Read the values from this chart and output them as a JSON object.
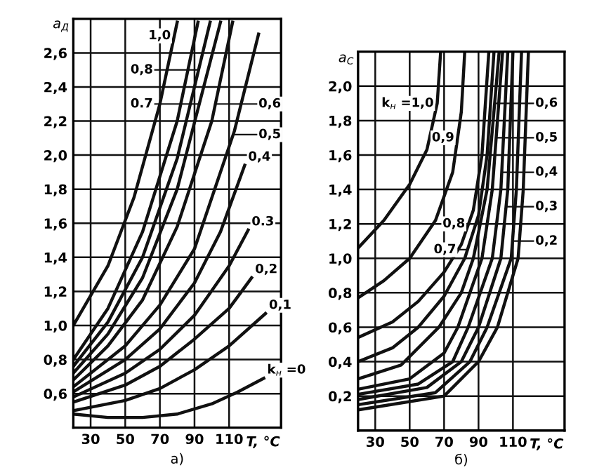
{
  "chart_data": [
    {
      "type": "line",
      "ylabel": "a$_{Д}$",
      "xlabel": "T, °C",
      "xlim": [
        20,
        140
      ],
      "xticks": [
        30,
        50,
        70,
        90,
        110
      ],
      "ylim": [
        0.4,
        2.8
      ],
      "yticks": [
        {
          "value": 0.6,
          "label": "0,6"
        },
        {
          "value": 0.8,
          "label": "0,8"
        },
        {
          "value": 1.0,
          "label": "1,0"
        },
        {
          "value": 1.2,
          "label": "1,2"
        },
        {
          "value": 1.4,
          "label": "1,4"
        },
        {
          "value": 1.6,
          "label": "1,6"
        },
        {
          "value": 1.8,
          "label": "1,8"
        },
        {
          "value": 2.0,
          "label": "2,0"
        },
        {
          "value": 2.2,
          "label": "2,2"
        },
        {
          "value": 2.4,
          "label": "2,4"
        },
        {
          "value": 2.6,
          "label": "2,6"
        }
      ],
      "grid": true,
      "line_style": "solid",
      "marker": "none",
      "annotations": [
        "а)",
        "0,8",
        "0.7",
        "0,6",
        {
          "text": "1,0",
          "x": 78.3,
          "y": 2.7
        },
        {
          "text": "0,5",
          "x": 112.3,
          "y": 2.12
        },
        {
          "text": "0,4",
          "x": 119,
          "y": 1.94
        },
        {
          "text": "0.3",
          "x": 121,
          "y": 1.56
        },
        {
          "text": "0,2",
          "x": 123,
          "y": 1.28
        },
        {
          "text": "0,1",
          "x": 131,
          "y": 1.07
        },
        {
          "text": "k$_{н}$ =0",
          "x": 130,
          "y": 0.69
        }
      ],
      "series": [
        {
          "color": "#111111",
          "x": [
            20,
            40,
            55,
            70,
            80
          ],
          "values": [
            1.0,
            1.35,
            1.75,
            2.3,
            2.78
          ]
        },
        {
          "color": "#111111",
          "x": [
            20,
            40,
            60,
            80,
            92
          ],
          "values": [
            0.8,
            1.1,
            1.55,
            2.2,
            2.78
          ]
        },
        {
          "color": "#111111",
          "x": [
            20,
            40,
            60,
            80,
            99
          ],
          "values": [
            0.76,
            1.02,
            1.4,
            1.98,
            2.78
          ]
        },
        {
          "color": "#111111",
          "x": [
            20,
            40,
            60,
            80,
            105
          ],
          "values": [
            0.72,
            0.95,
            1.28,
            1.8,
            2.78
          ]
        },
        {
          "color": "#111111",
          "x": [
            20,
            40,
            60,
            80,
            100,
            112
          ],
          "values": [
            0.68,
            0.88,
            1.15,
            1.58,
            2.2,
            2.78
          ]
        },
        {
          "color": "#111111",
          "x": [
            20,
            50,
            70,
            90,
            113,
            127
          ],
          "values": [
            0.64,
            0.88,
            1.12,
            1.45,
            2.14,
            2.71
          ]
        },
        {
          "color": "#111111",
          "x": [
            20,
            50,
            70,
            90,
            105,
            119
          ],
          "values": [
            0.61,
            0.8,
            0.98,
            1.25,
            1.55,
            1.94
          ]
        },
        {
          "color": "#111111",
          "x": [
            20,
            50,
            70,
            90,
            110,
            121
          ],
          "values": [
            0.58,
            0.72,
            0.86,
            1.06,
            1.35,
            1.56
          ]
        },
        {
          "color": "#111111",
          "x": [
            20,
            50,
            70,
            90,
            110,
            123
          ],
          "values": [
            0.55,
            0.65,
            0.76,
            0.92,
            1.1,
            1.28
          ]
        },
        {
          "color": "#111111",
          "x": [
            20,
            50,
            70,
            90,
            110,
            131
          ],
          "values": [
            0.5,
            0.56,
            0.63,
            0.74,
            0.88,
            1.07
          ]
        },
        {
          "color": "#111111",
          "x": [
            20,
            40,
            60,
            80,
            100,
            115,
            130
          ],
          "values": [
            0.48,
            0.46,
            0.46,
            0.48,
            0.54,
            0.61,
            0.69
          ]
        }
      ]
    },
    {
      "type": "line",
      "ylabel": "a$_{С}$",
      "xlabel": "T, °C",
      "xlim": [
        20,
        140
      ],
      "xticks": [
        30,
        50,
        70,
        90,
        110
      ],
      "ylim": [
        0,
        2.2
      ],
      "yticks": [
        {
          "value": 0.2,
          "label": "0,2"
        },
        {
          "value": 0.4,
          "label": "0,4"
        },
        {
          "value": 0.6,
          "label": "0,6"
        },
        {
          "value": 0.8,
          "label": "0,8"
        },
        {
          "value": 1.0,
          "label": "1,0"
        },
        {
          "value": 1.2,
          "label": "1,2"
        },
        {
          "value": 1.4,
          "label": "1,4"
        },
        {
          "value": 1.6,
          "label": "1,6"
        },
        {
          "value": 1.8,
          "label": "1,8"
        },
        {
          "value": 2.0,
          "label": "2,0"
        }
      ],
      "grid": true,
      "line_style": "solid",
      "marker": "none",
      "annotations": [
        "б)",
        "0,6",
        "0,5",
        {
          "text": "k$_{н}$ =1,0",
          "x": 66,
          "y": 1.9
        },
        {
          "text": "0,9",
          "x": 77.9,
          "y": 1.7
        },
        {
          "text": "0,8",
          "x": 84.2,
          "y": 1.2
        },
        {
          "text": "0,7",
          "x": 83.6,
          "y": 1.05
        },
        {
          "text": "0,4",
          "x": 103.5,
          "y": 1.5
        },
        {
          "text": "0,3",
          "x": 106,
          "y": 1.3
        },
        {
          "text": "0,2",
          "x": 109.8,
          "y": 1.1
        }
      ],
      "series": [
        {
          "color": "#111111",
          "x": [
            20,
            35,
            50,
            60,
            66,
            68
          ],
          "values": [
            1.06,
            1.22,
            1.43,
            1.63,
            1.9,
            2.2
          ]
        },
        {
          "color": "#111111",
          "x": [
            20,
            35,
            50,
            65,
            75,
            80,
            82
          ],
          "values": [
            0.77,
            0.87,
            1.0,
            1.22,
            1.5,
            1.85,
            2.2
          ]
        },
        {
          "color": "#111111",
          "x": [
            20,
            40,
            55,
            70,
            80,
            87,
            92,
            96
          ],
          "values": [
            0.54,
            0.63,
            0.75,
            0.92,
            1.08,
            1.28,
            1.6,
            2.2
          ]
        },
        {
          "color": "#111111",
          "x": [
            20,
            40,
            55,
            70,
            82,
            90,
            95,
            99
          ],
          "values": [
            0.4,
            0.48,
            0.6,
            0.78,
            1.0,
            1.25,
            1.6,
            2.2
          ]
        },
        {
          "color": "#111111",
          "x": [
            20,
            45,
            67,
            80,
            87,
            95,
            102
          ],
          "values": [
            0.3,
            0.38,
            0.6,
            0.8,
            1.0,
            1.4,
            2.2
          ]
        },
        {
          "color": "#111111",
          "x": [
            20,
            50,
            70,
            78,
            92,
            98,
            104
          ],
          "values": [
            0.24,
            0.3,
            0.45,
            0.6,
            1.0,
            1.4,
            2.2
          ]
        },
        {
          "color": "#111111",
          "x": [
            20,
            55,
            75,
            84,
            98,
            103,
            107
          ],
          "values": [
            0.21,
            0.27,
            0.4,
            0.6,
            1.0,
            1.4,
            2.2
          ]
        },
        {
          "color": "#111111",
          "x": [
            20,
            60,
            80,
            90,
            103,
            107,
            110
          ],
          "values": [
            0.18,
            0.25,
            0.4,
            0.6,
            1.0,
            1.4,
            2.2
          ]
        },
        {
          "color": "#111111",
          "x": [
            20,
            65,
            85,
            95,
            109,
            112,
            115
          ],
          "values": [
            0.15,
            0.22,
            0.4,
            0.6,
            1.0,
            1.4,
            2.2
          ]
        },
        {
          "color": "#111111",
          "x": [
            20,
            70,
            90,
            101,
            113,
            116,
            119
          ],
          "values": [
            0.12,
            0.2,
            0.4,
            0.6,
            1.0,
            1.4,
            2.2
          ]
        }
      ]
    }
  ]
}
